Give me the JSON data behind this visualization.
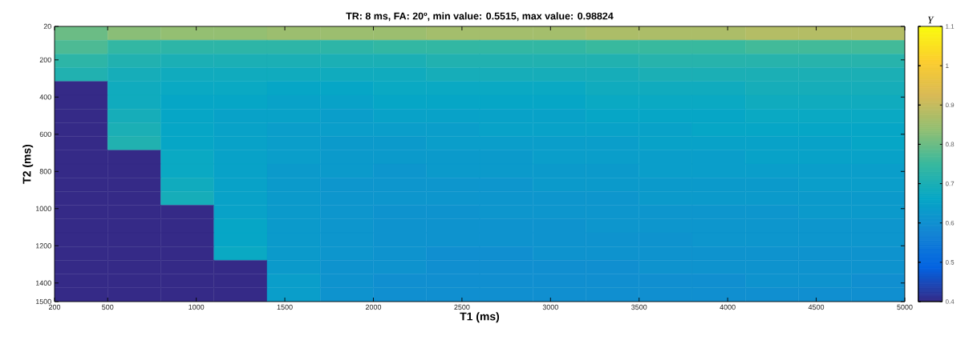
{
  "chart_data": {
    "type": "heatmap",
    "title": "TR: 8 ms, FA: 20º, min value: 0.5515, max value: 0.98824",
    "xlabel": "T1 (ms)",
    "ylabel": "T2 (ms)",
    "clabel": "Υ",
    "x": [
      350,
      650,
      950,
      1250,
      1550,
      1850,
      2150,
      2450,
      2750,
      3050,
      3350,
      3650,
      3950,
      4250,
      4550,
      4850
    ],
    "y": [
      57,
      131,
      205,
      279,
      353,
      427,
      501,
      575,
      649,
      723,
      797,
      871,
      945,
      1019,
      1093,
      1167,
      1241,
      1315,
      1389,
      1463
    ],
    "cells": [
      [
        0.8,
        0.83,
        0.84,
        0.84,
        0.85,
        0.85,
        0.85,
        0.86,
        0.86,
        0.86,
        0.87,
        0.87,
        0.87,
        0.88,
        0.88,
        0.88
      ],
      [
        0.77,
        0.74,
        0.73,
        0.73,
        0.73,
        0.73,
        0.74,
        0.74,
        0.74,
        0.74,
        0.75,
        0.75,
        0.75,
        0.76,
        0.76,
        0.76
      ],
      [
        0.73,
        0.71,
        0.7,
        0.7,
        0.7,
        0.7,
        0.7,
        0.71,
        0.71,
        0.71,
        0.71,
        0.72,
        0.72,
        0.72,
        0.72,
        0.72
      ],
      [
        0.71,
        0.69,
        0.68,
        0.68,
        0.68,
        0.68,
        0.68,
        0.69,
        0.69,
        0.69,
        0.69,
        0.7,
        0.7,
        0.7,
        0.7,
        0.7
      ],
      [
        0.4,
        0.68,
        0.67,
        0.67,
        0.66,
        0.66,
        0.67,
        0.67,
        0.67,
        0.67,
        0.68,
        0.68,
        0.68,
        0.69,
        0.69,
        0.69
      ],
      [
        0.4,
        0.68,
        0.66,
        0.66,
        0.65,
        0.65,
        0.66,
        0.66,
        0.66,
        0.66,
        0.67,
        0.67,
        0.67,
        0.68,
        0.68,
        0.68
      ],
      [
        0.4,
        0.69,
        0.66,
        0.65,
        0.65,
        0.64,
        0.65,
        0.65,
        0.65,
        0.65,
        0.66,
        0.66,
        0.66,
        0.67,
        0.67,
        0.67
      ],
      [
        0.4,
        0.7,
        0.66,
        0.65,
        0.64,
        0.64,
        0.64,
        0.64,
        0.65,
        0.65,
        0.65,
        0.65,
        0.66,
        0.66,
        0.66,
        0.66
      ],
      [
        0.4,
        0.71,
        0.66,
        0.65,
        0.64,
        0.63,
        0.63,
        0.64,
        0.64,
        0.64,
        0.64,
        0.65,
        0.65,
        0.65,
        0.65,
        0.66
      ],
      [
        0.4,
        0.4,
        0.67,
        0.65,
        0.64,
        0.63,
        0.63,
        0.63,
        0.63,
        0.64,
        0.64,
        0.64,
        0.64,
        0.65,
        0.65,
        0.65
      ],
      [
        0.4,
        0.4,
        0.67,
        0.65,
        0.63,
        0.63,
        0.62,
        0.63,
        0.63,
        0.63,
        0.63,
        0.64,
        0.64,
        0.64,
        0.64,
        0.64
      ],
      [
        0.4,
        0.4,
        0.68,
        0.65,
        0.63,
        0.62,
        0.62,
        0.62,
        0.62,
        0.63,
        0.63,
        0.63,
        0.63,
        0.63,
        0.64,
        0.64
      ],
      [
        0.4,
        0.4,
        0.69,
        0.65,
        0.63,
        0.62,
        0.62,
        0.62,
        0.62,
        0.62,
        0.62,
        0.63,
        0.63,
        0.63,
        0.63,
        0.63
      ],
      [
        0.4,
        0.4,
        0.4,
        0.65,
        0.63,
        0.62,
        0.61,
        0.61,
        0.62,
        0.62,
        0.62,
        0.62,
        0.62,
        0.62,
        0.63,
        0.63
      ],
      [
        0.4,
        0.4,
        0.4,
        0.66,
        0.63,
        0.62,
        0.61,
        0.61,
        0.61,
        0.61,
        0.62,
        0.62,
        0.62,
        0.62,
        0.62,
        0.62
      ],
      [
        0.4,
        0.4,
        0.4,
        0.66,
        0.63,
        0.62,
        0.61,
        0.61,
        0.61,
        0.61,
        0.61,
        0.61,
        0.62,
        0.62,
        0.62,
        0.62
      ],
      [
        0.4,
        0.4,
        0.4,
        0.67,
        0.63,
        0.62,
        0.61,
        0.6,
        0.6,
        0.61,
        0.61,
        0.61,
        0.61,
        0.61,
        0.61,
        0.61
      ],
      [
        0.4,
        0.4,
        0.4,
        0.4,
        0.63,
        0.61,
        0.61,
        0.6,
        0.6,
        0.6,
        0.6,
        0.61,
        0.61,
        0.61,
        0.61,
        0.61
      ],
      [
        0.4,
        0.4,
        0.4,
        0.4,
        0.64,
        0.61,
        0.6,
        0.6,
        0.6,
        0.6,
        0.6,
        0.6,
        0.6,
        0.61,
        0.61,
        0.6
      ],
      [
        0.4,
        0.4,
        0.4,
        0.4,
        0.64,
        0.61,
        0.6,
        0.6,
        0.6,
        0.6,
        0.6,
        0.6,
        0.6,
        0.6,
        0.6,
        0.6
      ]
    ],
    "xlim": [
      200,
      5000
    ],
    "ylim": [
      1500,
      20
    ],
    "xticks": [
      200,
      500,
      1000,
      1500,
      2000,
      2500,
      3000,
      3500,
      4000,
      4500,
      5000
    ],
    "yticks": [
      20,
      200,
      400,
      600,
      800,
      1000,
      1200,
      1400,
      1500
    ],
    "clim": [
      0.4,
      1.1
    ],
    "cticks": [
      0.4,
      0.5,
      0.6,
      0.7,
      0.8,
      0.9,
      1,
      1.1
    ]
  }
}
